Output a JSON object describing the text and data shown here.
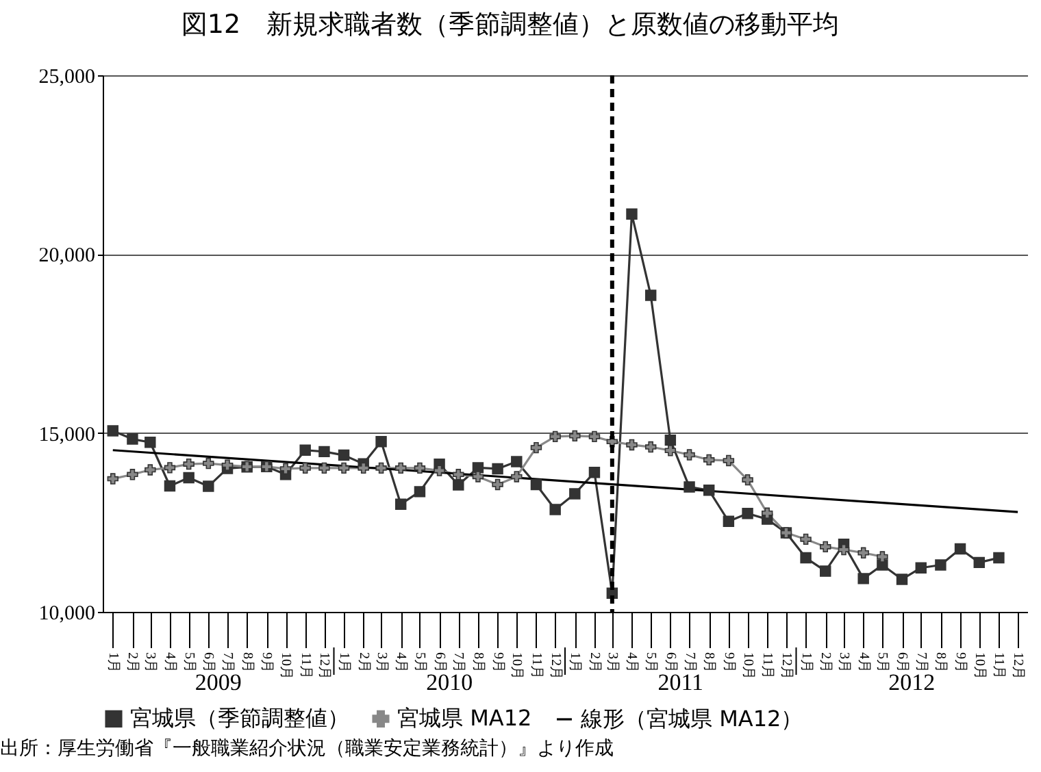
{
  "chart_data": {
    "type": "line",
    "title": "図12　新規求職者数（季節調整値）と原数値の移動平均",
    "annotations": [
      "2009",
      "2010",
      "2011",
      "2012",
      "出所：厚生労働省『一般職業紹介状況（職業安定業務統計）』より作成"
    ],
    "x": [
      "2009-01",
      "2009-02",
      "2009-03",
      "2009-04",
      "2009-05",
      "2009-06",
      "2009-07",
      "2009-08",
      "2009-09",
      "2009-10",
      "2009-11",
      "2009-12",
      "2010-01",
      "2010-02",
      "2010-03",
      "2010-04",
      "2010-05",
      "2010-06",
      "2010-07",
      "2010-08",
      "2010-09",
      "2010-10",
      "2010-11",
      "2010-12",
      "2011-01",
      "2011-02",
      "2011-03",
      "2011-04",
      "2011-05",
      "2011-06",
      "2011-07",
      "2011-08",
      "2011-09",
      "2011-10",
      "2011-11",
      "2011-12",
      "2012-01",
      "2012-02",
      "2012-03",
      "2012-04",
      "2012-05",
      "2012-06",
      "2012-07",
      "2012-08",
      "2012-09",
      "2012-10",
      "2012-11"
    ],
    "series": [
      {
        "name": "宮城県（季節調整値）",
        "color": "#333333",
        "marker": "square",
        "values": [
          15060,
          14830,
          14740,
          13520,
          13750,
          13510,
          14010,
          14050,
          14060,
          13840,
          14520,
          14480,
          14380,
          14140,
          14760,
          13010,
          13360,
          14130,
          13550,
          14030,
          14000,
          14200,
          13560,
          12860,
          13300,
          13900,
          10520,
          21120,
          18850,
          14800,
          13490,
          13400,
          12530,
          12750,
          12590,
          12210,
          11510,
          11140,
          11890,
          10930,
          11310,
          10910,
          11230,
          11310,
          11760,
          11380,
          11510
        ]
      },
      {
        "name": "宮城県 MA12",
        "color": "#888888",
        "marker": "cross",
        "x": [
          "2009-01",
          "2009-02",
          "2009-03",
          "2009-04",
          "2009-05",
          "2009-06",
          "2009-07",
          "2009-08",
          "2009-09",
          "2009-10",
          "2009-11",
          "2009-12",
          "2010-01",
          "2010-02",
          "2010-03",
          "2010-04",
          "2010-05",
          "2010-06",
          "2010-07",
          "2010-08",
          "2010-09",
          "2010-10",
          "2010-11",
          "2010-12",
          "2011-01",
          "2011-02",
          "2011-03",
          "2011-04",
          "2011-05",
          "2011-06",
          "2011-07",
          "2011-08",
          "2011-09",
          "2011-10",
          "2011-11",
          "2011-12",
          "2012-01",
          "2012-02",
          "2012-03",
          "2012-04",
          "2012-05"
        ],
        "values": [
          13720,
          13840,
          13970,
          14030,
          14130,
          14150,
          14100,
          14060,
          14060,
          14000,
          14020,
          14020,
          14020,
          14020,
          14020,
          14020,
          14020,
          13950,
          13840,
          13780,
          13560,
          13780,
          14590,
          14900,
          14920,
          14900,
          14760,
          14670,
          14610,
          14510,
          14390,
          14250,
          14230,
          13690,
          12760,
          12210,
          12030,
          11820,
          11740,
          11650,
          11540
        ]
      },
      {
        "name": "線形（宮城県 MA12）",
        "color": "#000000",
        "marker": "none",
        "x": [
          "2009-01",
          "2012-12"
        ],
        "values": [
          14520,
          12790
        ]
      }
    ],
    "xlim": [
      "2008-12-16",
      "2012-12-16"
    ],
    "xticks": [
      {
        "value": "2009-01",
        "label": "1月"
      },
      {
        "value": "2009-02",
        "label": "2月"
      },
      {
        "value": "2009-03",
        "label": "3月"
      },
      {
        "value": "2009-04",
        "label": "4月"
      },
      {
        "value": "2009-05",
        "label": "5月"
      },
      {
        "value": "2009-06",
        "label": "6月"
      },
      {
        "value": "2009-07",
        "label": "7月"
      },
      {
        "value": "2009-08",
        "label": "8月"
      },
      {
        "value": "2009-09",
        "label": "9月"
      },
      {
        "value": "2009-10",
        "label": "10月"
      },
      {
        "value": "2009-11",
        "label": "11月"
      },
      {
        "value": "2009-12",
        "label": "12月"
      },
      {
        "value": "2010-01",
        "label": "1月"
      },
      {
        "value": "2010-02",
        "label": "2月"
      },
      {
        "value": "2010-03",
        "label": "3月"
      },
      {
        "value": "2010-04",
        "label": "4月"
      },
      {
        "value": "2010-05",
        "label": "5月"
      },
      {
        "value": "2010-06",
        "label": "6月"
      },
      {
        "value": "2010-07",
        "label": "7月"
      },
      {
        "value": "2010-08",
        "label": "8月"
      },
      {
        "value": "2010-09",
        "label": "9月"
      },
      {
        "value": "2010-10",
        "label": "10月"
      },
      {
        "value": "2010-11",
        "label": "11月"
      },
      {
        "value": "2010-12",
        "label": "12月"
      },
      {
        "value": "2011-01",
        "label": "1月"
      },
      {
        "value": "2011-02",
        "label": "2月"
      },
      {
        "value": "2011-03",
        "label": "3月"
      },
      {
        "value": "2011-04",
        "label": "4月"
      },
      {
        "value": "2011-05",
        "label": "5月"
      },
      {
        "value": "2011-06",
        "label": "6月"
      },
      {
        "value": "2011-07",
        "label": "7月"
      },
      {
        "value": "2011-08",
        "label": "8月"
      },
      {
        "value": "2011-09",
        "label": "9月"
      },
      {
        "value": "2011-10",
        "label": "10月"
      },
      {
        "value": "2011-11",
        "label": "11月"
      },
      {
        "value": "2011-12",
        "label": "12月"
      },
      {
        "value": "2012-01",
        "label": "1月"
      },
      {
        "value": "2012-02",
        "label": "2月"
      },
      {
        "value": "2012-03",
        "label": "3月"
      },
      {
        "value": "2012-04",
        "label": "4月"
      },
      {
        "value": "2012-05",
        "label": "5月"
      },
      {
        "value": "2012-06",
        "label": "6月"
      },
      {
        "value": "2012-07",
        "label": "7月"
      },
      {
        "value": "2012-08",
        "label": "8月"
      },
      {
        "value": "2012-09",
        "label": "9月"
      },
      {
        "value": "2012-10",
        "label": "10月"
      },
      {
        "value": "2012-11",
        "label": "11月"
      },
      {
        "value": "2012-12",
        "label": "12月"
      }
    ],
    "ylim": [
      10000,
      25000
    ],
    "yticks": [
      {
        "value": 10000,
        "label": "10,000"
      },
      {
        "value": 15000,
        "label": "15,000"
      },
      {
        "value": 20000,
        "label": "20,000"
      },
      {
        "value": 25000,
        "label": "25,000"
      }
    ],
    "ref_lines": [
      {
        "axis": "x",
        "value": "2011-03",
        "color": "#000000",
        "line_style": "dashed"
      }
    ],
    "grid": "y",
    "legend": "bottom",
    "line_style": "solid"
  }
}
